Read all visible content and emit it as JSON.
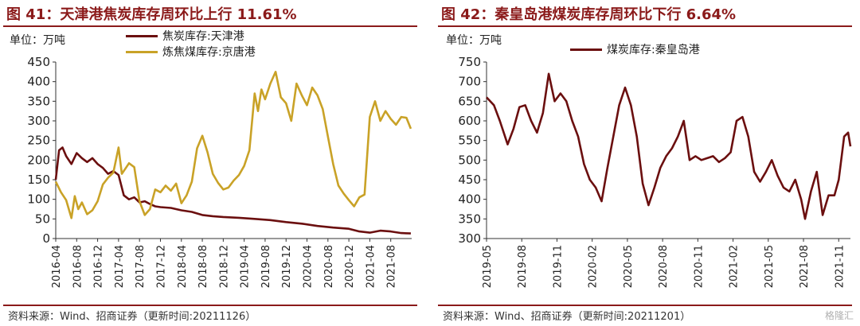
{
  "charts": [
    {
      "id": "left",
      "title": "图 41：天津港焦炭库存周环比上行 11.61%",
      "unit": "单位：万吨",
      "source": "资料来源：Wind、招商证券（更新时间:20211126）"
    },
    {
      "id": "right",
      "title": "图 42：秦皇岛港煤炭库存周环比下行 6.64%",
      "unit": "单位：万吨",
      "source": "资料来源：Wind、招商证券（更新时间:20211201）",
      "watermark": "格隆汇"
    }
  ],
  "chart_data": [
    {
      "type": "line",
      "title": "图 41：天津港焦炭库存周环比上行 11.61%",
      "ylabel": "单位：万吨",
      "ylim": [
        0,
        450
      ],
      "yticks": [
        0,
        50,
        100,
        150,
        200,
        250,
        300,
        350,
        400,
        450
      ],
      "xlim": [
        "2016-04",
        "2021-12"
      ],
      "xticks": [
        "2016-04",
        "2016-08",
        "2016-12",
        "2017-04",
        "2017-08",
        "2017-12",
        "2018-04",
        "2018-08",
        "2018-12",
        "2019-04",
        "2019-08",
        "2019-12",
        "2020-04",
        "2020-08",
        "2020-12",
        "2021-04",
        "2021-08"
      ],
      "grid": false,
      "legend_position": "top-center",
      "series": [
        {
          "name": "焦炭库存:天津港",
          "color": "#6B0F0F",
          "points": [
            [
              "2016-04-01",
              150
            ],
            [
              "2016-04-20",
              225
            ],
            [
              "2016-05-10",
              232
            ],
            [
              "2016-06-01",
              210
            ],
            [
              "2016-07-01",
              190
            ],
            [
              "2016-08-01",
              218
            ],
            [
              "2016-09-01",
              205
            ],
            [
              "2016-10-01",
              195
            ],
            [
              "2016-11-01",
              205
            ],
            [
              "2016-12-01",
              190
            ],
            [
              "2017-01-01",
              180
            ],
            [
              "2017-02-01",
              165
            ],
            [
              "2017-03-01",
              172
            ],
            [
              "2017-04-01",
              162
            ],
            [
              "2017-05-01",
              110
            ],
            [
              "2017-06-01",
              100
            ],
            [
              "2017-07-01",
              105
            ],
            [
              "2017-08-01",
              92
            ],
            [
              "2017-09-01",
              95
            ],
            [
              "2017-10-01",
              88
            ],
            [
              "2017-11-01",
              82
            ],
            [
              "2017-12-01",
              80
            ],
            [
              "2018-02-01",
              78
            ],
            [
              "2018-04-01",
              72
            ],
            [
              "2018-06-01",
              68
            ],
            [
              "2018-08-01",
              60
            ],
            [
              "2018-10-01",
              57
            ],
            [
              "2018-12-01",
              55
            ],
            [
              "2019-03-01",
              53
            ],
            [
              "2019-06-01",
              50
            ],
            [
              "2019-09-01",
              47
            ],
            [
              "2019-12-01",
              42
            ],
            [
              "2020-03-01",
              38
            ],
            [
              "2020-06-01",
              32
            ],
            [
              "2020-09-01",
              28
            ],
            [
              "2020-12-01",
              25
            ],
            [
              "2021-02-01",
              18
            ],
            [
              "2021-04-01",
              15
            ],
            [
              "2021-06-01",
              20
            ],
            [
              "2021-08-01",
              18
            ],
            [
              "2021-10-01",
              14
            ],
            [
              "2021-11-26",
              13
            ]
          ]
        },
        {
          "name": "炼焦煤库存:京唐港",
          "color": "#C9A227",
          "points": [
            [
              "2016-04-01",
              145
            ],
            [
              "2016-05-01",
              118
            ],
            [
              "2016-06-01",
              98
            ],
            [
              "2016-07-01",
              52
            ],
            [
              "2016-07-20",
              108
            ],
            [
              "2016-08-10",
              75
            ],
            [
              "2016-09-01",
              92
            ],
            [
              "2016-10-01",
              62
            ],
            [
              "2016-11-01",
              72
            ],
            [
              "2016-12-01",
              95
            ],
            [
              "2017-01-01",
              138
            ],
            [
              "2017-02-01",
              155
            ],
            [
              "2017-03-01",
              168
            ],
            [
              "2017-04-01",
              232
            ],
            [
              "2017-04-20",
              165
            ],
            [
              "2017-05-10",
              178
            ],
            [
              "2017-06-01",
              192
            ],
            [
              "2017-07-01",
              182
            ],
            [
              "2017-08-01",
              95
            ],
            [
              "2017-09-01",
              60
            ],
            [
              "2017-10-01",
              75
            ],
            [
              "2017-11-01",
              125
            ],
            [
              "2017-12-01",
              118
            ],
            [
              "2018-01-01",
              135
            ],
            [
              "2018-02-01",
              122
            ],
            [
              "2018-03-01",
              140
            ],
            [
              "2018-04-01",
              90
            ],
            [
              "2018-05-01",
              110
            ],
            [
              "2018-06-01",
              145
            ],
            [
              "2018-07-01",
              230
            ],
            [
              "2018-08-01",
              262
            ],
            [
              "2018-09-01",
              220
            ],
            [
              "2018-10-01",
              165
            ],
            [
              "2018-11-01",
              142
            ],
            [
              "2018-12-01",
              125
            ],
            [
              "2019-01-01",
              130
            ],
            [
              "2019-02-01",
              148
            ],
            [
              "2019-03-01",
              162
            ],
            [
              "2019-04-01",
              185
            ],
            [
              "2019-05-01",
              225
            ],
            [
              "2019-06-01",
              370
            ],
            [
              "2019-06-20",
              325
            ],
            [
              "2019-07-10",
              380
            ],
            [
              "2019-08-01",
              355
            ],
            [
              "2019-09-01",
              395
            ],
            [
              "2019-10-01",
              425
            ],
            [
              "2019-11-01",
              360
            ],
            [
              "2019-12-01",
              345
            ],
            [
              "2020-01-01",
              300
            ],
            [
              "2020-02-01",
              395
            ],
            [
              "2020-03-01",
              365
            ],
            [
              "2020-04-01",
              340
            ],
            [
              "2020-05-01",
              385
            ],
            [
              "2020-06-01",
              365
            ],
            [
              "2020-07-01",
              330
            ],
            [
              "2020-08-01",
              260
            ],
            [
              "2020-09-01",
              190
            ],
            [
              "2020-10-01",
              135
            ],
            [
              "2020-11-01",
              115
            ],
            [
              "2020-12-01",
              98
            ],
            [
              "2021-01-01",
              82
            ],
            [
              "2021-02-01",
              105
            ],
            [
              "2021-03-01",
              112
            ],
            [
              "2021-04-01",
              310
            ],
            [
              "2021-05-01",
              350
            ],
            [
              "2021-06-01",
              300
            ],
            [
              "2021-07-01",
              325
            ],
            [
              "2021-08-01",
              305
            ],
            [
              "2021-09-01",
              290
            ],
            [
              "2021-10-01",
              310
            ],
            [
              "2021-11-01",
              308
            ],
            [
              "2021-11-26",
              280
            ]
          ]
        }
      ]
    },
    {
      "type": "line",
      "title": "图 42：秦皇岛港煤炭库存周环比下行 6.64%",
      "ylabel": "单位：万吨",
      "ylim": [
        300,
        750
      ],
      "yticks": [
        300,
        350,
        400,
        450,
        500,
        550,
        600,
        650,
        700,
        750
      ],
      "xlim": [
        "2019-05",
        "2021-12"
      ],
      "xticks": [
        "2019-05",
        "2019-08",
        "2019-11",
        "2020-02",
        "2020-05",
        "2020-08",
        "2020-11",
        "2021-02",
        "2021-05",
        "2021-08",
        "2021-11"
      ],
      "grid": false,
      "legend_position": "top-center",
      "series": [
        {
          "name": "煤炭库存:秦皇岛港",
          "color": "#6B0F0F",
          "points": [
            [
              "2019-05-01",
              660
            ],
            [
              "2019-05-20",
              640
            ],
            [
              "2019-06-05",
              600
            ],
            [
              "2019-06-25",
              540
            ],
            [
              "2019-07-10",
              580
            ],
            [
              "2019-07-25",
              635
            ],
            [
              "2019-08-10",
              640
            ],
            [
              "2019-08-25",
              600
            ],
            [
              "2019-09-10",
              570
            ],
            [
              "2019-09-25",
              620
            ],
            [
              "2019-10-10",
              720
            ],
            [
              "2019-10-25",
              650
            ],
            [
              "2019-11-10",
              670
            ],
            [
              "2019-11-25",
              650
            ],
            [
              "2019-12-10",
              600
            ],
            [
              "2019-12-25",
              560
            ],
            [
              "2020-01-10",
              490
            ],
            [
              "2020-01-25",
              450
            ],
            [
              "2020-02-10",
              430
            ],
            [
              "2020-02-25",
              395
            ],
            [
              "2020-03-10",
              480
            ],
            [
              "2020-03-25",
              560
            ],
            [
              "2020-04-10",
              640
            ],
            [
              "2020-04-25",
              685
            ],
            [
              "2020-05-10",
              640
            ],
            [
              "2020-05-25",
              560
            ],
            [
              "2020-06-10",
              440
            ],
            [
              "2020-06-25",
              385
            ],
            [
              "2020-07-10",
              430
            ],
            [
              "2020-07-25",
              480
            ],
            [
              "2020-08-10",
              510
            ],
            [
              "2020-08-25",
              530
            ],
            [
              "2020-09-10",
              560
            ],
            [
              "2020-09-25",
              600
            ],
            [
              "2020-10-10",
              500
            ],
            [
              "2020-10-25",
              510
            ],
            [
              "2020-11-10",
              500
            ],
            [
              "2020-11-25",
              505
            ],
            [
              "2020-12-10",
              510
            ],
            [
              "2020-12-25",
              495
            ],
            [
              "2021-01-10",
              505
            ],
            [
              "2021-01-25",
              520
            ],
            [
              "2021-02-10",
              600
            ],
            [
              "2021-02-25",
              610
            ],
            [
              "2021-03-10",
              560
            ],
            [
              "2021-03-25",
              470
            ],
            [
              "2021-04-10",
              445
            ],
            [
              "2021-04-25",
              470
            ],
            [
              "2021-05-10",
              500
            ],
            [
              "2021-05-25",
              460
            ],
            [
              "2021-06-10",
              430
            ],
            [
              "2021-06-25",
              420
            ],
            [
              "2021-07-10",
              450
            ],
            [
              "2021-07-25",
              400
            ],
            [
              "2021-08-05",
              350
            ],
            [
              "2021-08-20",
              420
            ],
            [
              "2021-09-05",
              470
            ],
            [
              "2021-09-20",
              360
            ],
            [
              "2021-10-05",
              410
            ],
            [
              "2021-10-20",
              410
            ],
            [
              "2021-11-01",
              450
            ],
            [
              "2021-11-15",
              560
            ],
            [
              "2021-11-25",
              570
            ],
            [
              "2021-12-01",
              535
            ]
          ]
        }
      ]
    }
  ]
}
